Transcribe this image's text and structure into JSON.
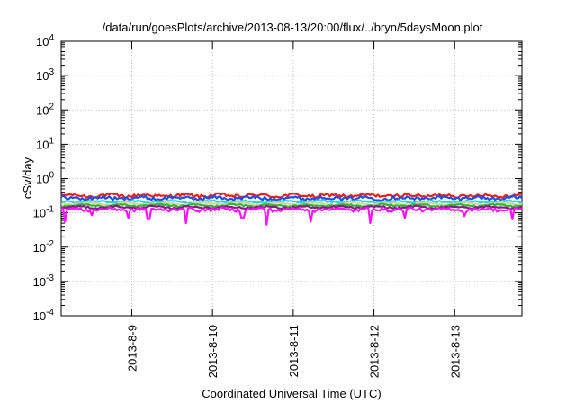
{
  "chart_data": {
    "type": "line",
    "title": "/data/run/goesPlots/archive/2013-08-13/20:00/flux/../bryn/5daysMoon.plot",
    "xlabel": "Coordinated Universal Time (UTC)",
    "ylabel": "cSv/day",
    "y_scale": "log",
    "ylim": [
      0.0001,
      10000
    ],
    "xlim": [
      "2013-08-08 03:00",
      "2013-08-13 20:00"
    ],
    "y_ticks": [
      {
        "base": "10",
        "exp": "-4"
      },
      {
        "base": "10",
        "exp": "-3"
      },
      {
        "base": "10",
        "exp": "-2"
      },
      {
        "base": "10",
        "exp": "-1"
      },
      {
        "base": "10",
        "exp": "0"
      },
      {
        "base": "10",
        "exp": "1"
      },
      {
        "base": "10",
        "exp": "2"
      },
      {
        "base": "10",
        "exp": "3"
      },
      {
        "base": "10",
        "exp": "4"
      }
    ],
    "x_ticks": [
      "2013-8-9",
      "2013-8-10",
      "2013-8-11",
      "2013-8-12",
      "2013-8-13"
    ],
    "grid": true,
    "series": [
      {
        "color": "#e8201c",
        "level": 0.32,
        "spread": 0.11,
        "dips": []
      },
      {
        "color": "#1f4fe8",
        "level": 0.27,
        "spread": 0.12,
        "dips": []
      },
      {
        "color": "#19d6e0",
        "level": 0.21,
        "spread": 0.06,
        "dips": []
      },
      {
        "color": "#d8d4a0",
        "level": 0.185,
        "spread": 0.04,
        "dips": []
      },
      {
        "color": "#2fb82f",
        "level": 0.165,
        "spread": 0.05,
        "dips": []
      },
      {
        "color": "#8a1a8a",
        "level": 0.145,
        "spread": 0.06,
        "dips": []
      },
      {
        "color": "#ff10ff",
        "level": 0.125,
        "spread": 0.1,
        "dips": [
          {
            "t": "2013-08-08 04:00",
            "v": 0.055
          },
          {
            "t": "2013-08-08 12:00",
            "v": 0.085
          },
          {
            "t": "2013-08-08 23:00",
            "v": 0.07
          },
          {
            "t": "2013-08-09 05:00",
            "v": 0.065
          },
          {
            "t": "2013-08-09 16:00",
            "v": 0.05
          },
          {
            "t": "2013-08-10 09:00",
            "v": 0.07
          },
          {
            "t": "2013-08-10 16:00",
            "v": 0.045
          },
          {
            "t": "2013-08-11 05:00",
            "v": 0.055
          },
          {
            "t": "2013-08-11 23:00",
            "v": 0.05
          },
          {
            "t": "2013-08-12 09:00",
            "v": 0.07
          },
          {
            "t": "2013-08-13 03:00",
            "v": 0.08
          },
          {
            "t": "2013-08-13 17:00",
            "v": 0.065
          }
        ]
      }
    ]
  }
}
